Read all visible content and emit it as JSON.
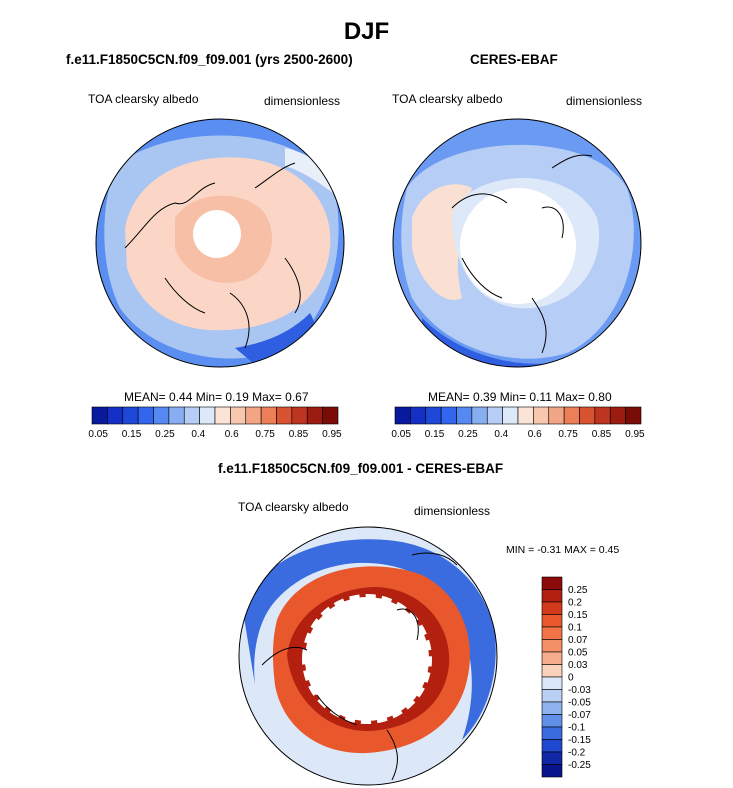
{
  "season": "DJF",
  "panels": [
    {
      "title": "f.e11.F1850C5CN.f09_f09.001 (yrs 2500-2600)",
      "variable": "TOA clearsky albedo",
      "units": "dimensionless",
      "stats": {
        "mean_label": "MEAN=",
        "mean": "0.44",
        "min_label": "Min=",
        "min": "0.19",
        "max_label": "Max=",
        "max": "0.67"
      }
    },
    {
      "title": "CERES-EBAF",
      "variable": "TOA clearsky albedo",
      "units": "dimensionless",
      "stats": {
        "mean_label": "MEAN=",
        "mean": "0.39",
        "min_label": "Min=",
        "min": "0.11",
        "max_label": "Max=",
        "max": "0.80"
      }
    }
  ],
  "diff_panel": {
    "title": "f.e11.F1850C5CN.f09_f09.001 - CERES-EBAF",
    "variable": "TOA clearsky albedo",
    "units": "dimensionless",
    "minmax_label": "MIN =  -0.31 MAX =   0.45"
  },
  "colorbar_top": {
    "labels": [
      "0.05",
      "0.15",
      "0.25",
      "0.4",
      "0.6",
      "0.75",
      "0.85",
      "0.95"
    ],
    "colors": [
      "#08199e",
      "#1430c4",
      "#1e48d8",
      "#3366ee",
      "#5588f0",
      "#88aef2",
      "#b6cef5",
      "#dde8f8",
      "#fbe3d8",
      "#f8c8ae",
      "#f3a686",
      "#ec7e58",
      "#d95232",
      "#bd3420",
      "#9c1c12",
      "#7a0c08"
    ]
  },
  "colorbar_diff": {
    "labels": [
      "0.25",
      "0.2",
      "0.15",
      "0.1",
      "0.07",
      "0.05",
      "0.03",
      "0",
      "-0.03",
      "-0.05",
      "-0.07",
      "-0.1",
      "-0.15",
      "-0.2",
      "-0.25"
    ],
    "colors": [
      "#8c0a0a",
      "#b3200f",
      "#d23a1b",
      "#e8582c",
      "#f07448",
      "#f49066",
      "#f6ad8c",
      "#fad1bb",
      "#dce8f8",
      "#b9d0f4",
      "#8fb3ef",
      "#6290e8",
      "#3a6ce0",
      "#1f47cf",
      "#1028a6",
      "#0a148a"
    ]
  }
}
